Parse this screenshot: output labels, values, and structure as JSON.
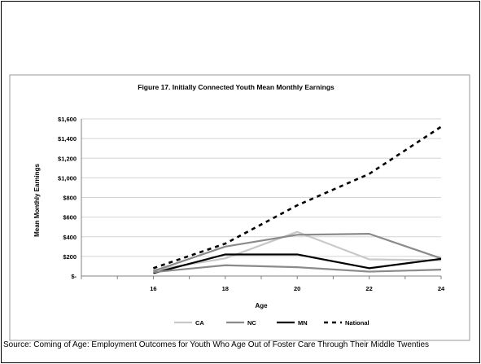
{
  "chart_data": {
    "type": "line",
    "title": "Figure 17. Initially Connected Youth Mean Monthly Earnings",
    "xlabel": "Age",
    "ylabel": "Mean Monthly Earnings",
    "x": [
      16,
      18,
      20,
      22,
      24
    ],
    "x_tick_labels": [
      "16",
      "18",
      "20",
      "22",
      "24"
    ],
    "ylim": [
      0,
      1600
    ],
    "y_ticks": [
      0,
      200,
      400,
      600,
      800,
      1000,
      1200,
      1400,
      1600
    ],
    "y_tick_labels": [
      "$-",
      "$200",
      "$400",
      "$600",
      "$800",
      "$1,000",
      "$1,200",
      "$1,400",
      "$1,600"
    ],
    "grid": true,
    "legend_position": "bottom",
    "series": [
      {
        "name": "CA",
        "values": [
          60,
          180,
          450,
          170,
          160
        ],
        "color": "#c8c8c8",
        "style": "solid"
      },
      {
        "name": "NC",
        "values": [
          50,
          300,
          420,
          430,
          180
        ],
        "color": "#8a8a8a",
        "style": "solid"
      },
      {
        "name": "MN",
        "values": [
          30,
          220,
          220,
          80,
          175
        ],
        "color": "#000000",
        "style": "solid"
      },
      {
        "name": "",
        "values": [
          40,
          110,
          90,
          45,
          65
        ],
        "color": "#8a8a8a",
        "style": "solid"
      },
      {
        "name": "National",
        "values": [
          80,
          330,
          720,
          1040,
          1520
        ],
        "color": "#000000",
        "style": "dashed"
      }
    ]
  },
  "source": "Source: Coming of Age: Employment Outcomes for Youth Who Age Out of Foster Care Through Their Middle Twenties"
}
